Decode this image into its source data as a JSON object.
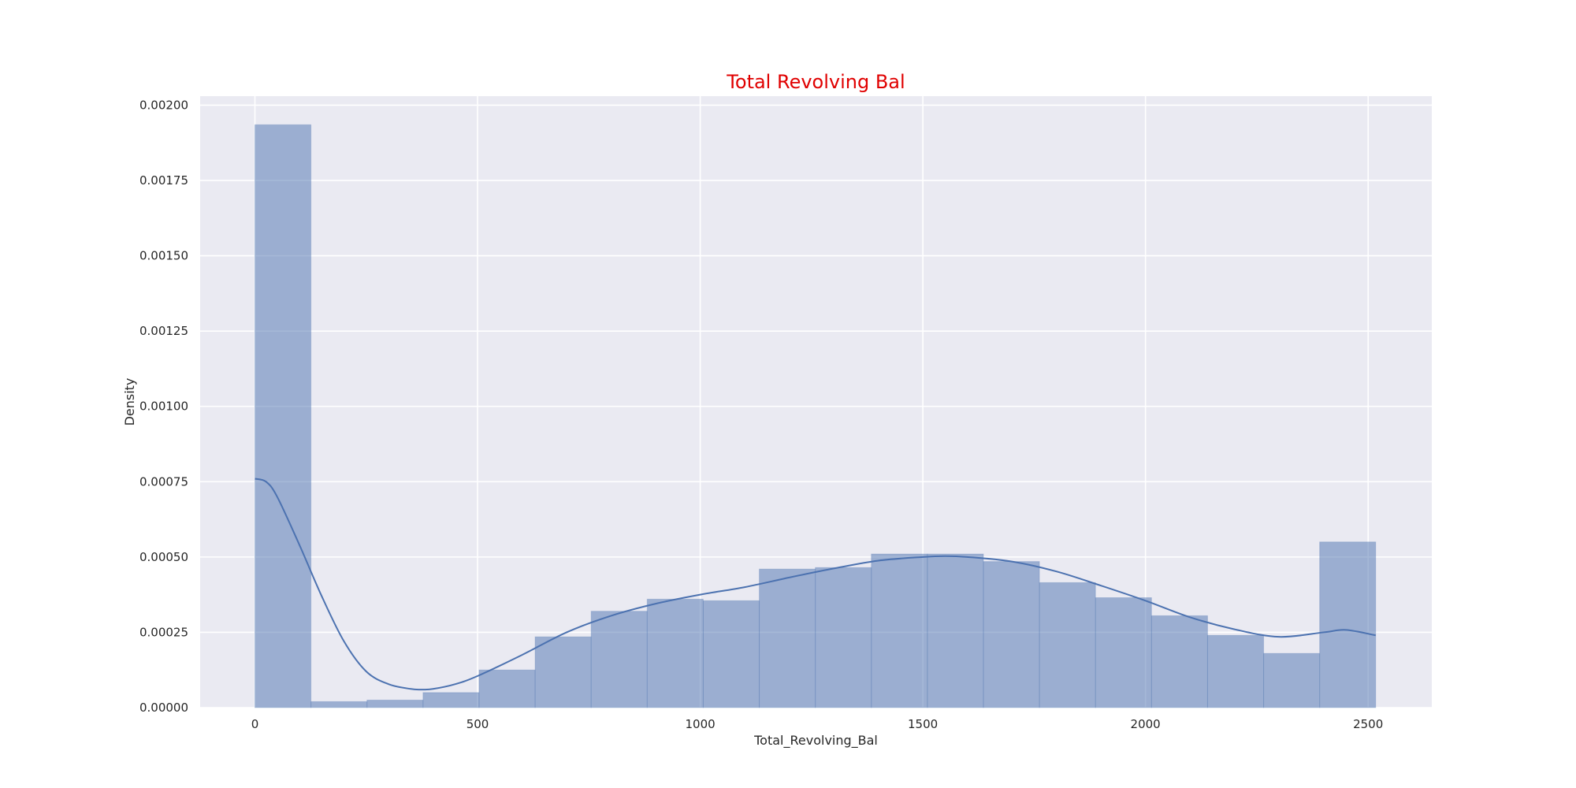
{
  "chart_data": {
    "type": "histogram",
    "title": "Total Revolving Bal",
    "xlabel": "Total_Revolving_Bal",
    "ylabel": "Density",
    "xlim": [
      -123,
      2643
    ],
    "ylim": [
      0,
      0.00203
    ],
    "x_ticks": [
      0,
      500,
      1000,
      1500,
      2000,
      2500
    ],
    "x_tick_labels": [
      "0",
      "500",
      "1000",
      "1500",
      "2000",
      "2500"
    ],
    "y_ticks": [
      0,
      0.00025,
      0.0005,
      0.00075,
      0.001,
      0.00125,
      0.0015,
      0.00175,
      0.002
    ],
    "y_tick_labels": [
      "0.00000",
      "0.00025",
      "0.00050",
      "0.00075",
      "0.00100",
      "0.00125",
      "0.00150",
      "0.00175",
      "0.00200"
    ],
    "grid": true,
    "bin_edges": [
      0,
      125.85,
      251.7,
      377.55,
      503.4,
      629.25,
      755.1,
      880.95,
      1006.8,
      1132.65,
      1258.5,
      1384.35,
      1510.2,
      1636.05,
      1761.9,
      1887.75,
      2013.6,
      2139.45,
      2265.3,
      2391.15,
      2517
    ],
    "densities": [
      0.001935,
      2e-05,
      2.5e-05,
      5e-05,
      0.000125,
      0.000235,
      0.00032,
      0.00036,
      0.000355,
      0.00046,
      0.000465,
      0.00051,
      0.00051,
      0.000485,
      0.000415,
      0.000365,
      0.000305,
      0.00024,
      0.00018,
      0.00055
    ],
    "kde": {
      "x": [
        0,
        25,
        50,
        100,
        150,
        200,
        250,
        300,
        350,
        375,
        400,
        450,
        500,
        600,
        700,
        800,
        900,
        1000,
        1100,
        1200,
        1300,
        1400,
        1500,
        1550,
        1600,
        1700,
        1800,
        1900,
        2000,
        2100,
        2200,
        2300,
        2400,
        2450,
        2517
      ],
      "y": [
        0.00076,
        0.00075,
        0.0007,
        0.00054,
        0.00037,
        0.00022,
        0.00012,
        7.8e-05,
        6.2e-05,
        6e-05,
        6.2e-05,
        7.8e-05,
        0.000105,
        0.000175,
        0.00025,
        0.000305,
        0.000345,
        0.000375,
        0.0004,
        0.000432,
        0.000462,
        0.000488,
        0.0005,
        0.000503,
        0.0005,
        0.000485,
        0.000452,
        0.000405,
        0.000355,
        0.0003,
        0.00026,
        0.000235,
        0.00025,
        0.000258,
        0.00024
      ]
    },
    "colors": {
      "background": "#eaeaf2",
      "grid": "#ffffff",
      "bars": "#4c72b0",
      "kde_line": "#4c72b0",
      "title": "#e00000"
    }
  }
}
